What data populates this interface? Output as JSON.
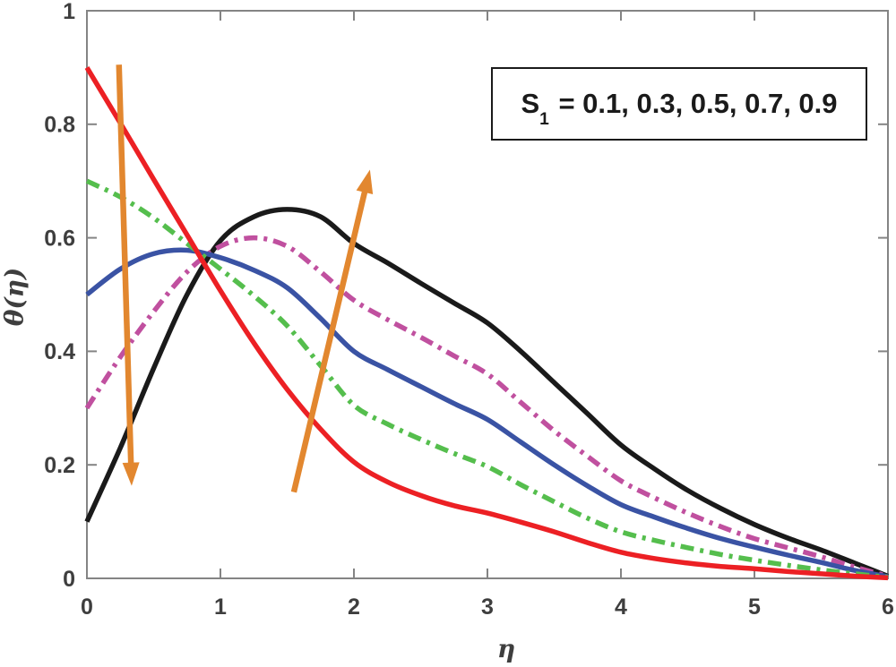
{
  "figure": {
    "background": "#ffffff",
    "axis_line_color": "#848484",
    "tick_label_color": "#3e3e3e",
    "xlabel": "η",
    "ylabel": "θ(η)"
  },
  "annotation": {
    "prefix": "S",
    "subscript": "1",
    "rest": " = 0.1, 0.3, 0.5, 0.7, 0.9"
  },
  "chart_data": {
    "type": "line",
    "title": "",
    "xlabel": "η",
    "ylabel": "θ(η)",
    "xlim": [
      0,
      6
    ],
    "ylim": [
      0,
      1
    ],
    "grid": false,
    "legend_position": "none",
    "annotation_text": "S1 = 0.1, 0.3, 0.5, 0.7, 0.9",
    "x_tick_values": [
      0,
      1,
      2,
      3,
      4,
      5,
      6
    ],
    "x_tick_labels": [
      "0",
      "1",
      "2",
      "3",
      "4",
      "5",
      "6"
    ],
    "y_tick_values": [
      0,
      0.2,
      0.4,
      0.6,
      0.8,
      1
    ],
    "y_tick_labels": [
      "0",
      "0.2",
      "0.4",
      "0.6",
      "0.8",
      "1"
    ],
    "x": [
      0,
      0.25,
      0.5,
      0.75,
      1,
      1.25,
      1.5,
      1.75,
      2,
      2.25,
      2.5,
      2.75,
      3,
      3.25,
      3.5,
      3.75,
      4,
      4.25,
      4.5,
      4.75,
      5,
      5.25,
      5.5,
      5.75,
      6
    ],
    "series": [
      {
        "name": "S1 = 0.1",
        "slug": "s1-0p1",
        "color": "#1a1a1a",
        "style": "solid",
        "values": [
          0.1,
          0.23,
          0.37,
          0.5,
          0.595,
          0.637,
          0.65,
          0.637,
          0.59,
          0.556,
          0.52,
          0.485,
          0.45,
          0.4,
          0.345,
          0.29,
          0.235,
          0.193,
          0.155,
          0.123,
          0.095,
          0.071,
          0.05,
          0.027,
          0.004
        ]
      },
      {
        "name": "S1 = 0.3",
        "slug": "s1-0p3",
        "color": "#c0509f",
        "style": "dashdot",
        "values": [
          0.3,
          0.39,
          0.47,
          0.54,
          0.585,
          0.6,
          0.585,
          0.54,
          0.49,
          0.456,
          0.425,
          0.392,
          0.36,
          0.31,
          0.26,
          0.215,
          0.172,
          0.142,
          0.115,
          0.091,
          0.07,
          0.054,
          0.038,
          0.02,
          0.004
        ]
      },
      {
        "name": "S1 = 0.5",
        "slug": "s1-0p5",
        "color": "#3a53a4",
        "style": "solid",
        "values": [
          0.5,
          0.545,
          0.572,
          0.578,
          0.565,
          0.543,
          0.512,
          0.458,
          0.4,
          0.368,
          0.338,
          0.308,
          0.28,
          0.24,
          0.2,
          0.163,
          0.13,
          0.108,
          0.088,
          0.07,
          0.055,
          0.041,
          0.028,
          0.014,
          0.003
        ]
      },
      {
        "name": "S1 = 0.7",
        "slug": "s1-0p7",
        "color": "#55be4d",
        "style": "dashdot",
        "values": [
          0.7,
          0.672,
          0.635,
          0.59,
          0.545,
          0.498,
          0.445,
          0.375,
          0.305,
          0.272,
          0.245,
          0.22,
          0.197,
          0.165,
          0.135,
          0.106,
          0.082,
          0.067,
          0.054,
          0.042,
          0.032,
          0.023,
          0.015,
          0.008,
          0.002
        ]
      },
      {
        "name": "S1 = 0.9",
        "slug": "s1-0p9",
        "color": "#ec2024",
        "style": "solid",
        "values": [
          0.9,
          0.802,
          0.703,
          0.605,
          0.507,
          0.415,
          0.333,
          0.263,
          0.205,
          0.17,
          0.146,
          0.128,
          0.115,
          0.099,
          0.082,
          0.063,
          0.046,
          0.035,
          0.027,
          0.021,
          0.017,
          0.012,
          0.008,
          0.004,
          0.001
        ]
      }
    ],
    "arrows": [
      {
        "name": "decreasing-trend-arrow",
        "color": "#e2872f",
        "from": {
          "x": 0.24,
          "y": 0.905
        },
        "to": {
          "x": 0.335,
          "y": 0.163
        }
      },
      {
        "name": "increasing-trend-arrow",
        "color": "#e2872f",
        "from": {
          "x": 1.55,
          "y": 0.152
        },
        "to": {
          "x": 2.12,
          "y": 0.72
        }
      }
    ]
  }
}
